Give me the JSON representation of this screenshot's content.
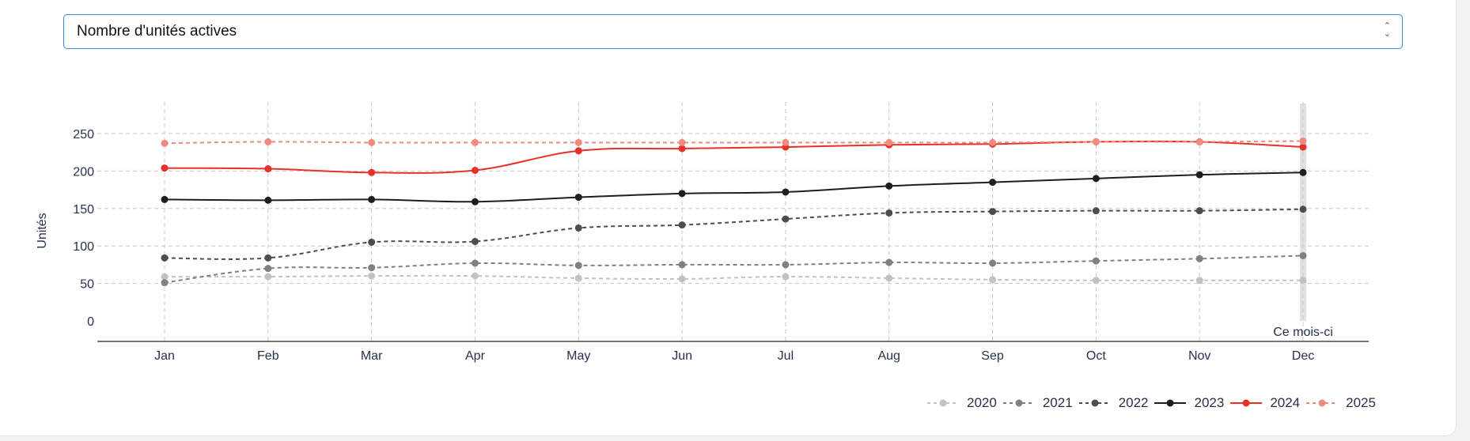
{
  "selector": {
    "value": "Nombre d'unités actives",
    "icon": "chevron-up-down-icon"
  },
  "chart_data": {
    "type": "line",
    "ylabel": "Unités",
    "xlabel": "",
    "categories": [
      "Jan",
      "Feb",
      "Mar",
      "Apr",
      "May",
      "Jun",
      "Jul",
      "Aug",
      "Sep",
      "Oct",
      "Nov",
      "Dec"
    ],
    "yticks": [
      0,
      50,
      100,
      150,
      200,
      250
    ],
    "ylim": [
      0,
      280
    ],
    "grid": true,
    "legend": "bottom-right",
    "annotation": {
      "label": "Ce mois-ci",
      "category": "Dec"
    },
    "series": [
      {
        "name": "2020",
        "color": "#c2c2c2",
        "dashed": true,
        "values": [
          59,
          59,
          60,
          60,
          57,
          56,
          59,
          57,
          55,
          54,
          54,
          54
        ]
      },
      {
        "name": "2021",
        "color": "#808080",
        "dashed": true,
        "values": [
          51,
          70,
          71,
          77,
          74,
          75,
          75,
          78,
          77,
          80,
          83,
          87
        ]
      },
      {
        "name": "2022",
        "color": "#4d4d4d",
        "dashed": true,
        "values": [
          84,
          84,
          105,
          106,
          124,
          128,
          136,
          144,
          146,
          147,
          147,
          149
        ]
      },
      {
        "name": "2023",
        "color": "#1e1e1e",
        "dashed": false,
        "values": [
          162,
          161,
          162,
          159,
          165,
          170,
          172,
          180,
          185,
          190,
          195,
          198
        ]
      },
      {
        "name": "2024",
        "color": "#e8302a",
        "dashed": false,
        "values": [
          204,
          203,
          198,
          201,
          227,
          230,
          232,
          235,
          236,
          239,
          239,
          232
        ]
      },
      {
        "name": "2025",
        "color": "#ee8a7e",
        "dashed": true,
        "values": [
          237,
          239,
          238,
          238,
          238,
          238,
          238,
          238,
          238,
          239,
          239,
          240
        ]
      }
    ]
  }
}
